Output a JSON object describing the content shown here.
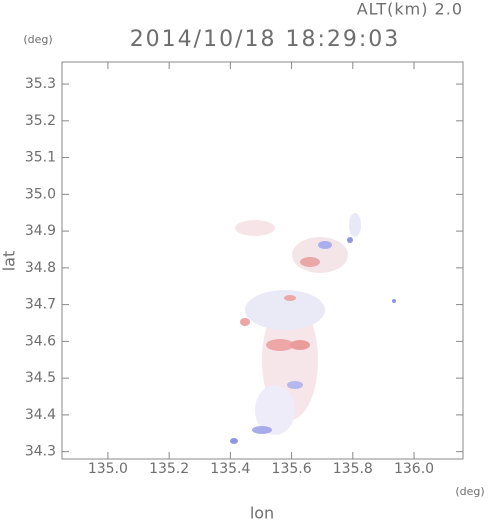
{
  "chart_data": {
    "type": "scatter",
    "title": "2014/10/18 18:29:03",
    "subtitle": "ALT(km) 2.0",
    "y_unit": "(deg)",
    "x_unit": "(deg)",
    "xlabel": "lon",
    "ylabel": "lat",
    "xlim": [
      134.85,
      136.16
    ],
    "ylim": [
      34.28,
      35.36
    ],
    "xticks": [
      {
        "value": 135.0,
        "label": "135.0"
      },
      135.2,
      135.4,
      135.6,
      135.8,
      {
        "value": 136.0,
        "label": "136.0"
      }
    ],
    "yticks": [
      34.3,
      34.4,
      34.5,
      34.6,
      34.7,
      34.8,
      34.9,
      {
        "value": 35.0,
        "label": "35.0"
      },
      35.1,
      35.2,
      35.3
    ]
  }
}
